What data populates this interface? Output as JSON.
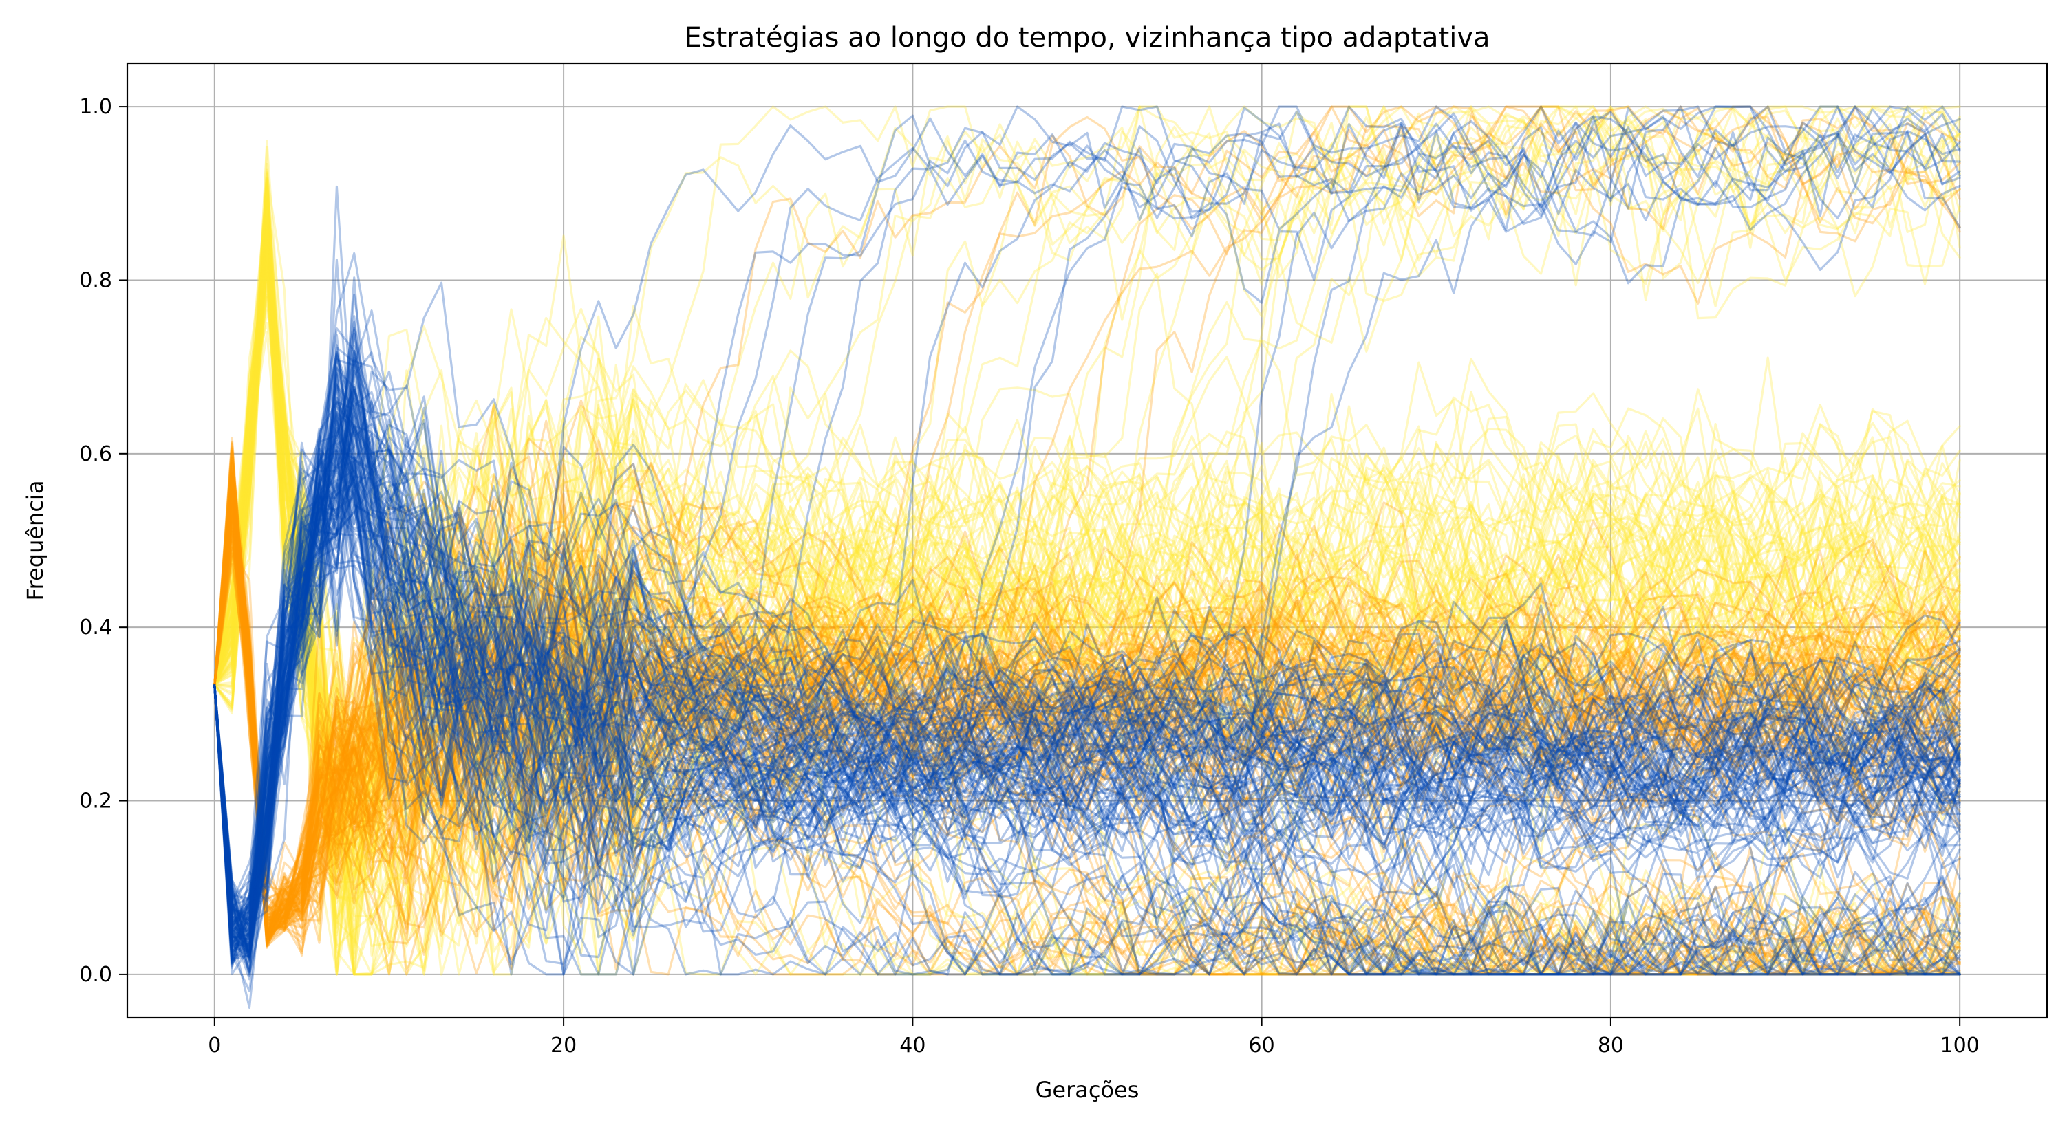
{
  "chart_data": {
    "type": "line",
    "title": "Estratégias ao longo do tempo, vizinhança tipo adaptativa",
    "xlabel": "Gerações",
    "ylabel": "Frequência",
    "xlim": [
      -5,
      105
    ],
    "ylim": [
      -0.05,
      1.05
    ],
    "xticks": [
      0,
      20,
      40,
      60,
      80,
      100
    ],
    "xtick_labels": [
      "0",
      "20",
      "40",
      "60",
      "80",
      "100"
    ],
    "yticks": [
      0.0,
      0.2,
      0.4,
      0.6,
      0.8,
      1.0
    ],
    "ytick_labels": [
      "0.0",
      "0.2",
      "0.4",
      "0.6",
      "0.8",
      "1.0"
    ],
    "grid": true,
    "legend": "none",
    "series_colors": [
      "#0047b3",
      "#ff9900",
      "#ffe733"
    ],
    "line_alpha": 0.3,
    "runs_per_strategy": 110,
    "x_range": [
      0,
      100
    ],
    "typical_trajectory": {
      "blue": {
        "start": 0.333,
        "dip_at_gen_1": 0.05,
        "peak_at_gen_8": 0.6,
        "equilibrium": 0.25
      },
      "orange": {
        "start": 0.333,
        "peak_at_gen_1": 0.55,
        "dip_at_gen_3": 0.03,
        "equilibrium": 0.32
      },
      "yellow": {
        "start": 0.333,
        "peak_at_gen_3": 0.85,
        "dip_at_gen_8": 0.2,
        "equilibrium": 0.43
      }
    }
  }
}
